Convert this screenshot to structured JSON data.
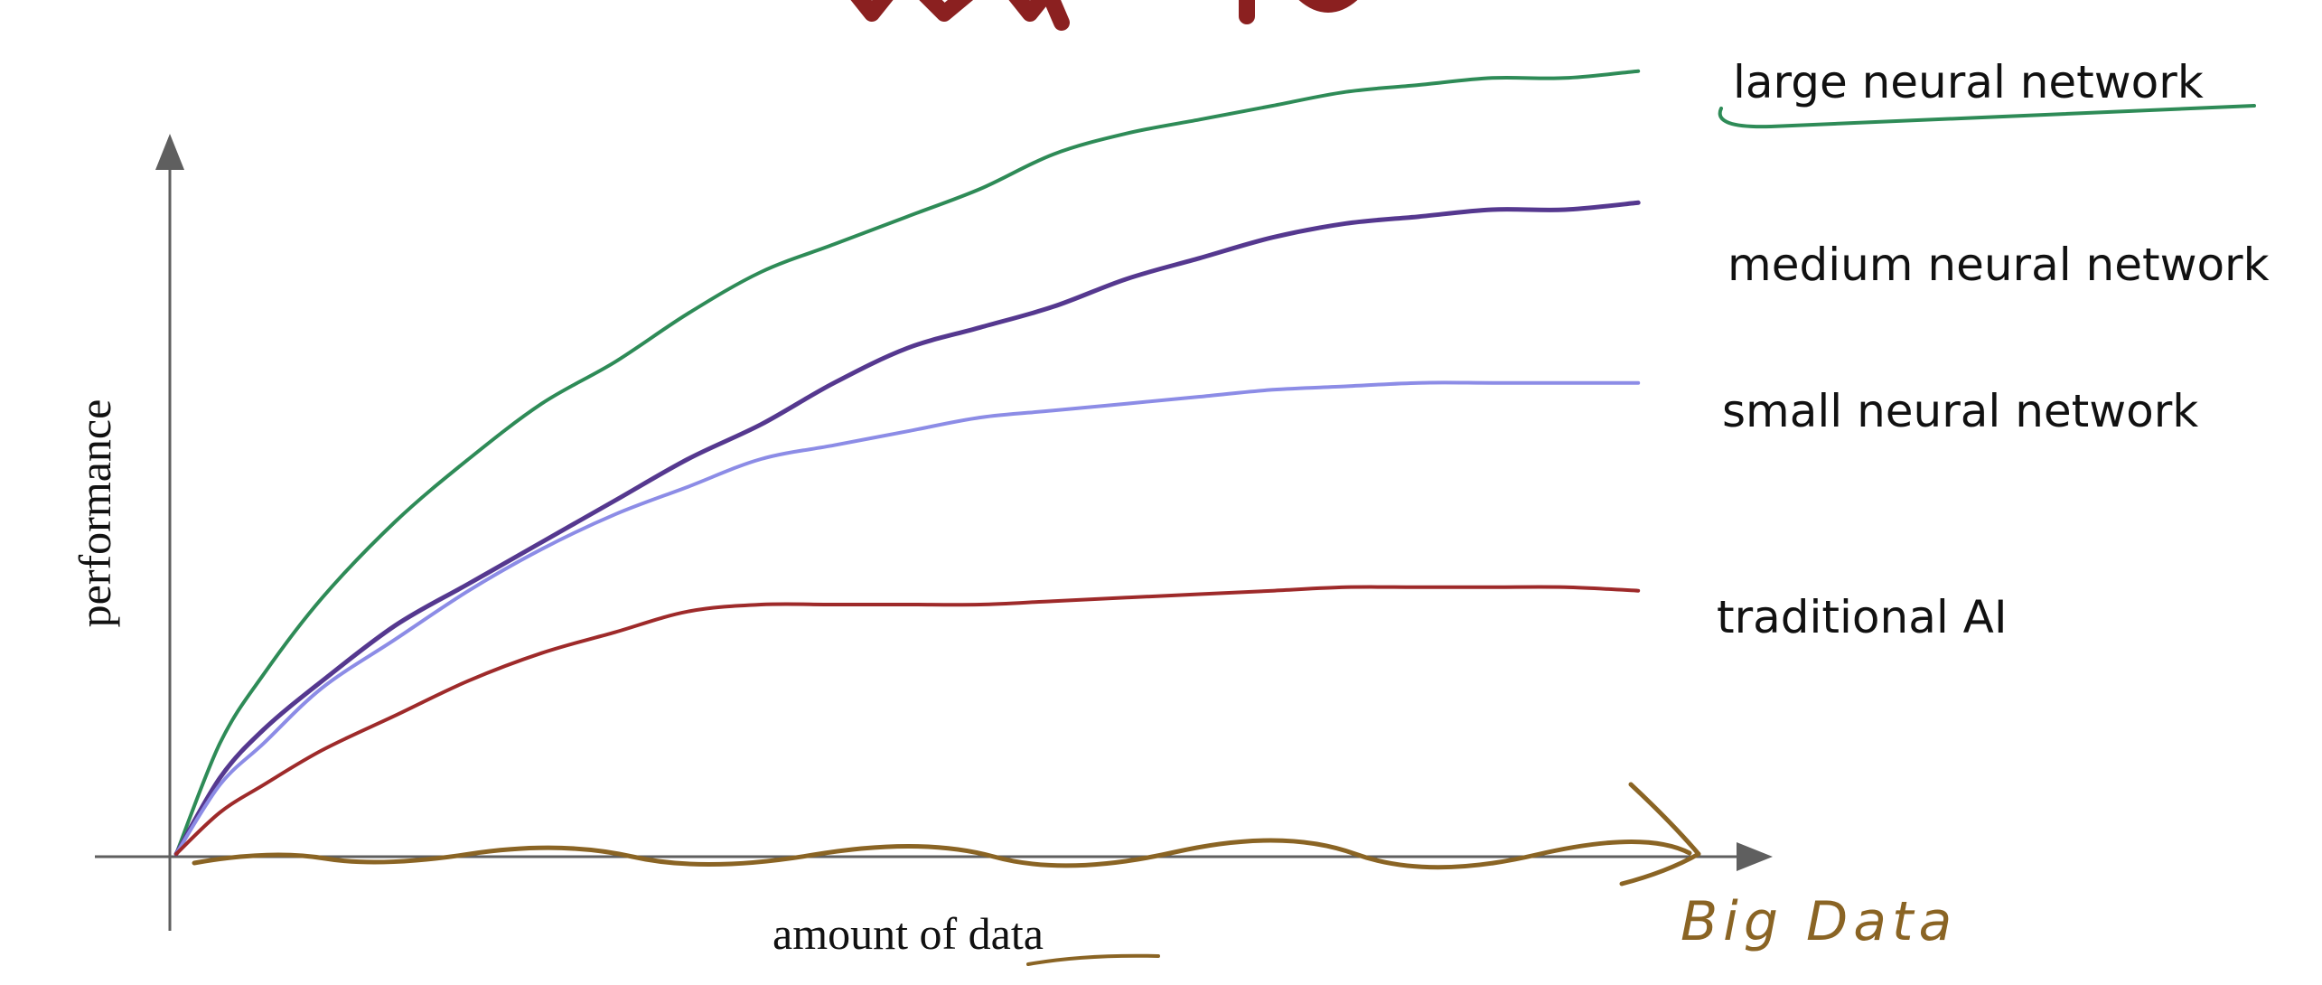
{
  "chart_data": {
    "type": "line",
    "title": "",
    "xlabel": "amount of data",
    "ylabel": "performance",
    "x": [
      0,
      0.03,
      0.06,
      0.1,
      0.15,
      0.2,
      0.25,
      0.3,
      0.35,
      0.4,
      0.45,
      0.5,
      0.55,
      0.6,
      0.65,
      0.7,
      0.75,
      0.8,
      0.85,
      0.9,
      0.95,
      1.0
    ],
    "series": [
      {
        "name": "large neural network",
        "color": "#2e8b57",
        "values": [
          0.0,
          0.16,
          0.26,
          0.37,
          0.48,
          0.57,
          0.65,
          0.71,
          0.78,
          0.84,
          0.88,
          0.92,
          0.96,
          1.01,
          1.04,
          1.06,
          1.08,
          1.1,
          1.11,
          1.12,
          1.12,
          1.13
        ]
      },
      {
        "name": "medium neural network",
        "color": "#55388f",
        "values": [
          0.0,
          0.11,
          0.18,
          0.25,
          0.33,
          0.39,
          0.45,
          0.51,
          0.57,
          0.62,
          0.68,
          0.73,
          0.76,
          0.79,
          0.83,
          0.86,
          0.89,
          0.91,
          0.92,
          0.93,
          0.93,
          0.94
        ]
      },
      {
        "name": "small neural network",
        "color": "#8c8ce6",
        "values": [
          0.0,
          0.1,
          0.16,
          0.24,
          0.31,
          0.38,
          0.44,
          0.49,
          0.53,
          0.57,
          0.59,
          0.61,
          0.63,
          0.64,
          0.65,
          0.66,
          0.67,
          0.675,
          0.68,
          0.68,
          0.68,
          0.68
        ]
      },
      {
        "name": "traditional AI",
        "color": "#9e2a2a",
        "values": [
          0.0,
          0.06,
          0.1,
          0.15,
          0.2,
          0.25,
          0.29,
          0.32,
          0.35,
          0.36,
          0.36,
          0.36,
          0.36,
          0.365,
          0.37,
          0.375,
          0.38,
          0.385,
          0.385,
          0.385,
          0.385,
          0.38
        ]
      }
    ],
    "xlim": [
      0,
      1.1
    ],
    "ylim": [
      0,
      1.2
    ],
    "grid": false,
    "legend": "right, inline labels at line ends"
  },
  "annotations": {
    "big_data_label": "Big Data",
    "ink_color": "#8a6424"
  },
  "colors": {
    "axis": "#5f5f5f",
    "text": "#111111",
    "title_fragment": "#8b2020"
  }
}
